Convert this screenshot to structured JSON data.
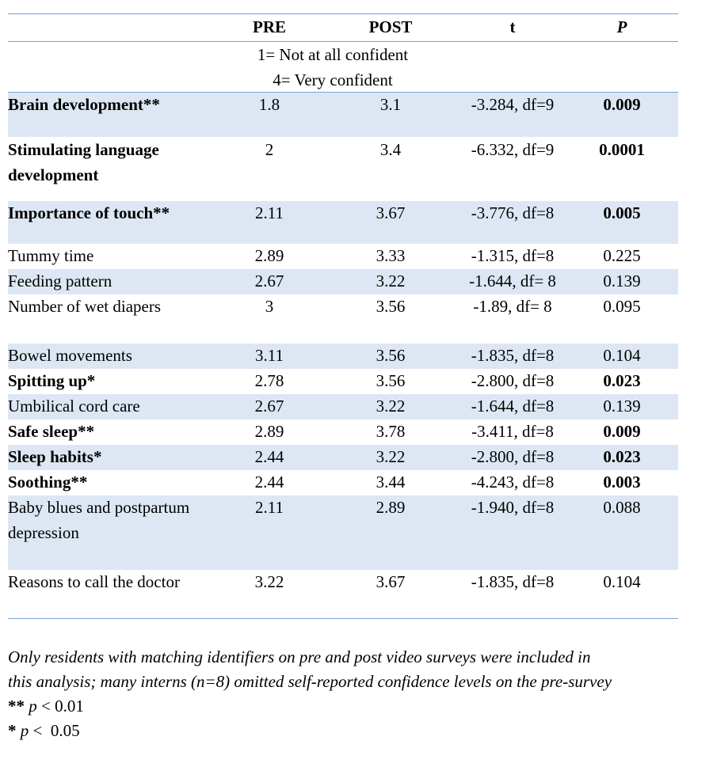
{
  "headers": {
    "pre": "PRE",
    "post": "POST",
    "t": "t",
    "p": "P"
  },
  "scale": {
    "line1": "1= Not at all confident",
    "line2": "4= Very confident"
  },
  "rows": [
    {
      "label": "Brain development**",
      "pre": "1.8",
      "post": "3.1",
      "t": "-3.284, df=9",
      "p": "0.009"
    },
    {
      "label": "Stimulating language development",
      "pre": "2",
      "post": "3.4",
      "t": "-6.332, df=9",
      "p": "0.0001"
    },
    {
      "label": "Importance of touch**",
      "pre": "2.11",
      "post": "3.67",
      "t": "-3.776, df=8",
      "p": "0.005"
    },
    {
      "label": "Tummy time",
      "pre": "2.89",
      "post": "3.33",
      "t": "-1.315, df=8",
      "p": "0.225"
    },
    {
      "label": "Feeding pattern",
      "pre": "2.67",
      "post": "3.22",
      "t": "-1.644, df= 8",
      "p": "0.139"
    },
    {
      "label": "Number of wet diapers",
      "pre": "3",
      "post": "3.56",
      "t": "-1.89, df= 8",
      "p": "0.095"
    },
    {
      "label": "Bowel movements",
      "pre": "3.11",
      "post": "3.56",
      "t": "-1.835, df=8",
      "p": "0.104"
    },
    {
      "label": "Spitting up*",
      "pre": "2.78",
      "post": "3.56",
      "t": "-2.800, df=8",
      "p": "0.023"
    },
    {
      "label": "Umbilical cord care",
      "pre": "2.67",
      "post": "3.22",
      "t": "-1.644, df=8",
      "p": "0.139"
    },
    {
      "label": "Safe sleep**",
      "pre": "2.89",
      "post": "3.78",
      "t": "-3.411, df=8",
      "p": "0.009"
    },
    {
      "label": "Sleep habits*",
      "pre": "2.44",
      "post": "3.22",
      "t": "-2.800, df=8",
      "p": "0.023"
    },
    {
      "label": "Soothing**",
      "pre": "2.44",
      "post": "3.44",
      "t": "-4.243, df=8",
      "p": "0.003"
    },
    {
      "label": "Baby blues and postpartum depression",
      "pre": "2.11",
      "post": "2.89",
      "t": "-1.940, df=8",
      "p": "0.088"
    },
    {
      "label": "Reasons to call the doctor",
      "pre": "3.22",
      "post": "3.67",
      "t": "-1.835, df=8",
      "p": "0.104"
    }
  ],
  "footnote": {
    "line1": "Only residents with matching identifiers on pre and post video surveys were included in",
    "line2": "this analysis; many interns (n=8) omitted self-reported confidence levels on the pre-survey",
    "sig1_marker": "** ",
    "sig1_text": "p < 0.01",
    "sig2_marker": "* ",
    "sig2_text": "p <  0.05"
  },
  "colors": {
    "rule": "#7a9fd0",
    "band": "#dde7f3"
  }
}
